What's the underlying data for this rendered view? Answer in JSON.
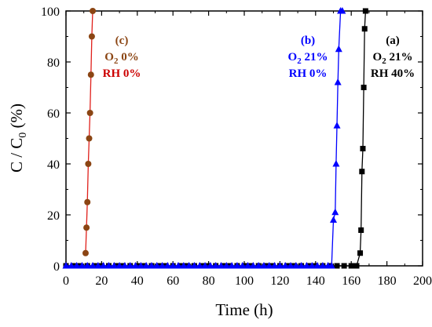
{
  "chart_data": {
    "type": "scatter",
    "xlabel": "Time (h)",
    "ylabel": {
      "main": "C / C",
      "sub": "0",
      "unit": " (%)"
    },
    "xlim": [
      0,
      200
    ],
    "ylim": [
      0,
      100
    ],
    "x_ticks": [
      "0",
      "20",
      "40",
      "60",
      "80",
      "100",
      "120",
      "140",
      "160",
      "180",
      "200"
    ],
    "y_ticks": [
      "0",
      "20",
      "40",
      "60",
      "80",
      "100"
    ],
    "grid": false,
    "series": [
      {
        "key": "a",
        "color": "#000000",
        "marker": "square",
        "x": [
          0,
          4,
          8,
          12,
          16,
          20,
          24,
          28,
          32,
          36,
          40,
          44,
          48,
          52,
          56,
          60,
          64,
          68,
          72,
          76,
          80,
          84,
          88,
          92,
          96,
          100,
          104,
          108,
          112,
          116,
          120,
          124,
          128,
          132,
          136,
          140,
          144,
          148,
          152,
          156,
          160,
          163,
          165,
          165.5,
          166,
          166.5,
          167,
          167.5,
          168
        ],
        "y": [
          0,
          0,
          0,
          0,
          0,
          0,
          0,
          0,
          0,
          0,
          0,
          0,
          0,
          0,
          0,
          0,
          0,
          0,
          0,
          0,
          0,
          0,
          0,
          0,
          0,
          0,
          0,
          0,
          0,
          0,
          0,
          0,
          0,
          0,
          0,
          0,
          0,
          0,
          0,
          0,
          0,
          0,
          5,
          14,
          37,
          46,
          70,
          93,
          100
        ]
      },
      {
        "key": "b",
        "color": "#0000ff",
        "marker": "triangle",
        "x": [
          0,
          3,
          6,
          9,
          12,
          15,
          18,
          21,
          24,
          27,
          30,
          33,
          36,
          39,
          42,
          45,
          48,
          51,
          54,
          57,
          60,
          63,
          66,
          69,
          72,
          75,
          78,
          81,
          84,
          87,
          90,
          93,
          96,
          99,
          102,
          105,
          108,
          111,
          114,
          117,
          120,
          123,
          126,
          129,
          132,
          135,
          138,
          141,
          144,
          147,
          149,
          150,
          151,
          151.5,
          152,
          152.5,
          153,
          154,
          155
        ],
        "y": [
          0,
          0,
          0,
          0,
          0,
          0,
          0,
          0,
          0,
          0,
          0,
          0,
          0,
          0,
          0,
          0,
          0,
          0,
          0,
          0,
          0,
          0,
          0,
          0,
          0,
          0,
          0,
          0,
          0,
          0,
          0,
          0,
          0,
          0,
          0,
          0,
          0,
          0,
          0,
          0,
          0,
          0,
          0,
          0,
          0,
          0,
          0,
          0,
          0,
          0,
          0,
          18,
          21,
          40,
          55,
          72,
          85,
          100,
          100
        ]
      },
      {
        "key": "c",
        "color": "#8b4513",
        "line_color": "#e0201b",
        "marker": "circle",
        "x": [
          11,
          11.5,
          12,
          12.5,
          13,
          13.5,
          14,
          14.5,
          15
        ],
        "y": [
          5,
          15,
          25,
          40,
          50,
          60,
          75,
          90,
          100
        ]
      }
    ],
    "annotations": [
      {
        "series": "c",
        "lines": [
          "(c)",
          "O2 0%",
          "RH 0%"
        ],
        "colors": [
          "#8b4513",
          "#8b4513",
          "#cc0000"
        ]
      },
      {
        "series": "b",
        "lines": [
          "(b)",
          "O2 21%",
          "RH 0%"
        ],
        "colors": [
          "#0000ff",
          "#0000ff",
          "#0000ff"
        ]
      },
      {
        "series": "a",
        "lines": [
          "(a)",
          "O2 21%",
          "RH 40%"
        ],
        "colors": [
          "#000000",
          "#000000",
          "#000000"
        ]
      }
    ]
  }
}
